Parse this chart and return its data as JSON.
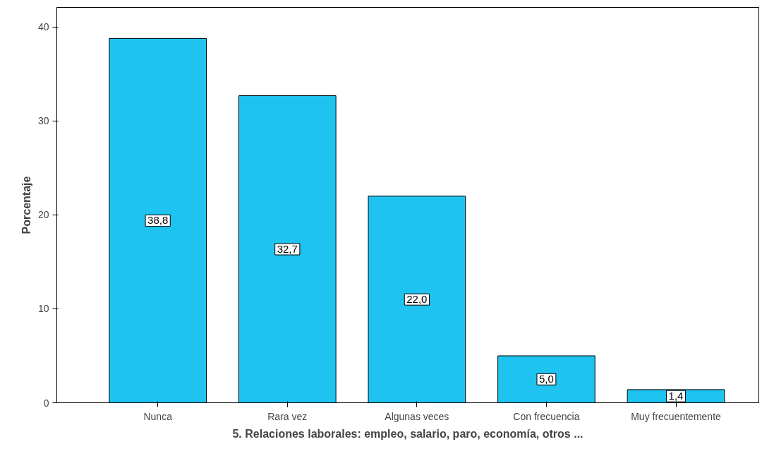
{
  "chart_data": {
    "type": "bar",
    "xlabel": "5. Relaciones laborales: empleo, salario, paro, economía, otros ...",
    "ylabel": "Porcentaje",
    "categories": [
      "Nunca",
      "Rara vez",
      "Algunas veces",
      "Con frecuencia",
      "Muy frecuentemente"
    ],
    "values": [
      38.8,
      32.7,
      22.0,
      5.0,
      1.4
    ],
    "value_labels": [
      "38,8",
      "32,7",
      "22,0",
      "5,0",
      "1,4"
    ],
    "color": "#1ec3f0",
    "ylim": [
      0,
      42.1
    ],
    "yticks": [
      0,
      10,
      20,
      30,
      40
    ],
    "grid": false
  }
}
